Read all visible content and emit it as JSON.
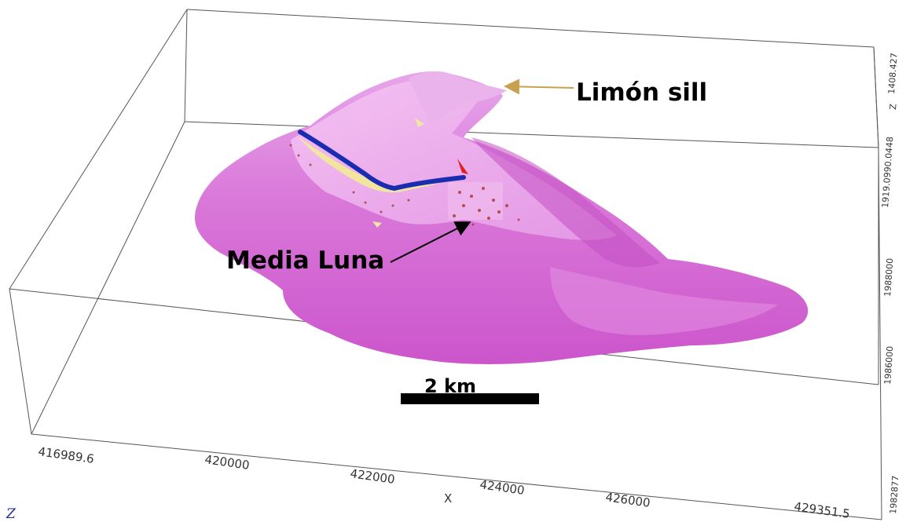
{
  "labels": {
    "limon_sill": "Limón sill",
    "media_luna": "Media Luna",
    "scale_bar": "2 km"
  },
  "x_axis": {
    "name": "X",
    "ticks": [
      "416989.6",
      "420000",
      "422000",
      "424000",
      "426000",
      "429351.5"
    ]
  },
  "z_axis": {
    "name": "Z",
    "ticks": [
      "1408.427",
      "1919.0990.0448"
    ]
  },
  "y_axis": {
    "ticks": [
      "1988000",
      "1986000",
      "1982877"
    ]
  },
  "corner_indicator": "Z",
  "colors": {
    "body": "#d86ad8",
    "body_light": "#f2b8f2",
    "fault_blue": "#1a2db0",
    "zone_yellow": "#f0e6a0",
    "arrow_gold": "#c9a050",
    "dots": "#a0302a"
  }
}
